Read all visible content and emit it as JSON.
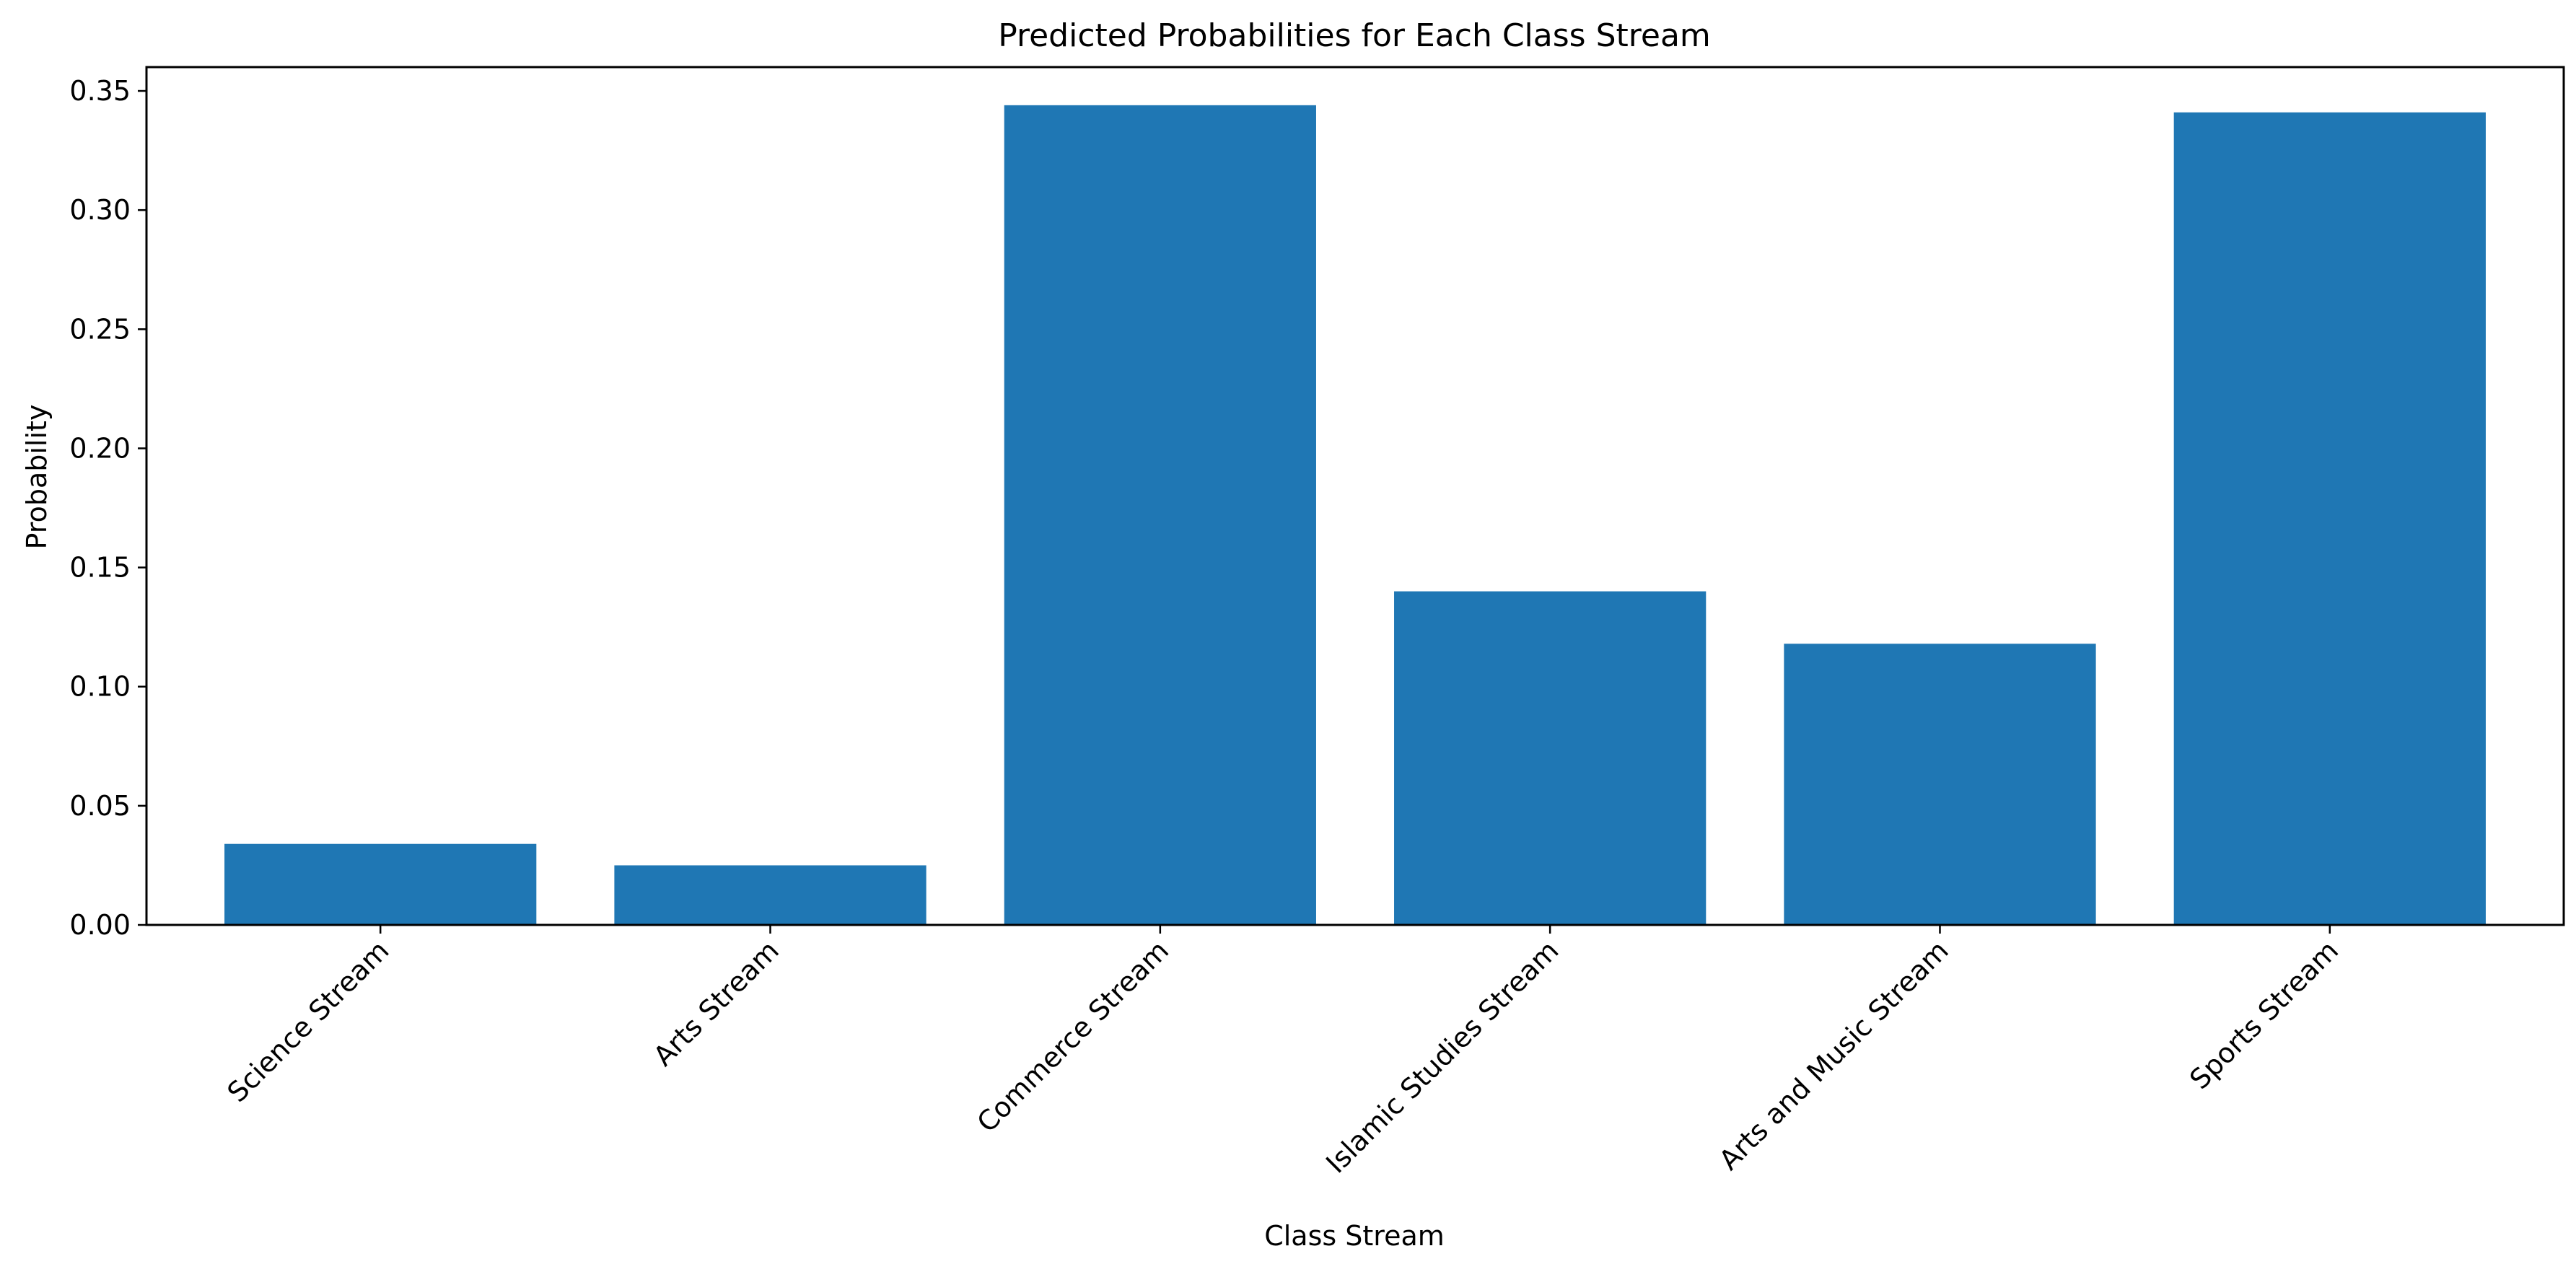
{
  "chart_data": {
    "type": "bar",
    "title": "Predicted Probabilities for Each Class Stream",
    "xlabel": "Class Stream",
    "ylabel": "Probability",
    "categories": [
      "Science Stream",
      "Arts Stream",
      "Commerce Stream",
      "Islamic Studies Stream",
      "Arts and Music Stream",
      "Sports Stream"
    ],
    "values": [
      0.034,
      0.025,
      0.344,
      0.14,
      0.118,
      0.341
    ],
    "ylim": [
      0,
      0.36
    ],
    "yticks": [
      "0.00",
      "0.05",
      "0.10",
      "0.15",
      "0.20",
      "0.25",
      "0.30",
      "0.35"
    ],
    "ytick_values": [
      0,
      0.05,
      0.1,
      0.15,
      0.2,
      0.25,
      0.3,
      0.35
    ],
    "grid": false,
    "bar_color": "#1f77b4"
  }
}
